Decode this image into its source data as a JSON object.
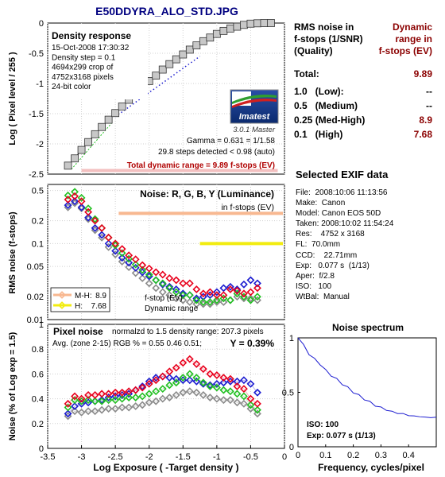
{
  "title": "E50DDYRA_ALO_STD.JPG",
  "summary": {
    "header_left": [
      "RMS noise in",
      "f-stops (1/SNR)",
      "(Quality)"
    ],
    "header_right": [
      "Dynamic",
      "range in",
      "f-stops (EV)"
    ],
    "rows": [
      {
        "label": "Total:",
        "value": "9.89"
      },
      {
        "label": "1.0   (Low):",
        "value": "--"
      },
      {
        "label": "0.5   (Medium)",
        "value": "--"
      },
      {
        "label": "0.25 (Med-High)",
        "value": "8.9"
      },
      {
        "label": "0.1   (High)",
        "value": "7.68"
      }
    ]
  },
  "exif": {
    "title": "Selected EXIF data",
    "lines": [
      "File:  2008:10:06 11:13:56",
      "Make:  Canon",
      "Model: Canon EOS 50D",
      "Taken: 2008:10:02 11:54:24",
      "Res:    4752 x 3168",
      "FL:  70.0mm",
      "CCD:    22.71mm",
      "Exp:   0.077 s  (1/13)",
      "Aper:  f/2.8",
      "ISO:   100",
      "WtBal:  Manual"
    ]
  },
  "colors": {
    "red": "#e8001c",
    "green": "#22c022",
    "blue": "#1c1cd0",
    "gray": "#8a8a8a",
    "title_blue": "#000080",
    "value_red": "#8b0000",
    "mh_band": "#f8b890",
    "h_band": "#f2ec10"
  },
  "panel1": {
    "box_title": "Density response",
    "info": [
      "15-Oct-2008 17:30:32",
      "Density step = 0.1",
      "4694x299 crop of",
      "4752x3168 pixels",
      "24-bit color"
    ],
    "logo_text": "Imatest",
    "version": "3.0.1  Master",
    "gamma": "Gamma = 0.631 = 1/1.58",
    "steps": "29.8 steps detected < 0.98 (auto)",
    "total_dr": "Total dynamic range = 9.89 f-stops (EV)",
    "ylabel": "Log ( Pixel level / 255 )",
    "yticks": [
      "0",
      "-0.5",
      "-1",
      "-1.5",
      "-2",
      "-2.5"
    ]
  },
  "panel2": {
    "title": "Noise: R, G, B, Y (Luminance)",
    "subtitle": "in f-stops (EV)",
    "ylabel": "RMS noise (f-stops)",
    "yticks": [
      "0.5",
      "0.2",
      "0.1",
      "0.05",
      "0.02",
      "0.01"
    ],
    "legend": [
      {
        "label": "M-H:",
        "value": "8.9"
      },
      {
        "label": "H:",
        "value": "7.68"
      }
    ],
    "annot": [
      "f-stop (EV)",
      "Dynamic range"
    ]
  },
  "panel3": {
    "title": "Pixel noise",
    "norm_text": "normalzd to 1.5 density range: 207.3 pixels",
    "avg_text": "Avg. (zone 2-15) RGB % = 0.55  0.46  0.51;",
    "y_text": "Y = 0.39%",
    "ylabel": "Noise (% of Log exp = 1.5)",
    "yticks": [
      "1",
      "0.8",
      "0.6",
      "0.4",
      "0.2",
      "0"
    ],
    "xticks": [
      "-3.5",
      "-3",
      "-2.5",
      "-2",
      "-1.5",
      "-1",
      "-0.5",
      "0"
    ],
    "xlabel": "Log Exposure  ( -Target density )"
  },
  "spectrum": {
    "title": "Noise spectrum",
    "yticks": [
      "1",
      "0.5",
      "0"
    ],
    "xticks": [
      "0",
      "0.1",
      "0.2",
      "0.3",
      "0.4"
    ],
    "xlabel": "Frequency, cycles/pixel",
    "iso": "ISO:   100",
    "exp": "Exp:   0.077 s  (1/13)"
  },
  "chart_data": [
    {
      "type": "scatter",
      "title": "Density response",
      "xlabel": "",
      "ylabel": "Log ( Pixel level / 255 )",
      "xlim": [
        -3.5,
        0
      ],
      "ylim": [
        -2.5,
        0
      ],
      "series": [
        {
          "name": "",
          "x": [
            -3.2,
            -3.1,
            -3.0,
            -2.9,
            -2.8,
            -2.7,
            -2.6,
            -2.5,
            -2.4,
            -2.3,
            -2.2,
            -2.1,
            -2.0,
            -1.9,
            -1.8,
            -1.7,
            -1.6,
            -1.5,
            -1.4,
            -1.3,
            -1.2,
            -1.1,
            -1.0,
            -0.9,
            -0.8,
            -0.7,
            -0.6,
            -0.5,
            -0.4,
            -0.3,
            -0.2
          ],
          "y": [
            -2.36,
            -2.24,
            -2.1,
            -1.97,
            -1.84,
            -1.72,
            -1.6,
            -1.49,
            -1.38,
            -1.27,
            -1.16,
            -1.06,
            -0.96,
            -0.87,
            -0.77,
            -0.68,
            -0.6,
            -0.52,
            -0.44,
            -0.37,
            -0.3,
            -0.24,
            -0.18,
            -0.13,
            -0.09,
            -0.06,
            -0.03,
            -0.01,
            -0.004,
            -0.001,
            0.0
          ]
        }
      ]
    },
    {
      "type": "scatter",
      "title": "Noise: R, G, B, Y (Luminance)",
      "ylabel": "RMS noise (f-stops)",
      "yscale": "log",
      "xlim": [
        -3.5,
        0
      ],
      "ylim": [
        0.01,
        0.6
      ],
      "x": [
        -3.2,
        -3.1,
        -3.0,
        -2.9,
        -2.8,
        -2.7,
        -2.6,
        -2.5,
        -2.4,
        -2.3,
        -2.2,
        -2.1,
        -2.0,
        -1.9,
        -1.8,
        -1.7,
        -1.6,
        -1.5,
        -1.4,
        -1.3,
        -1.2,
        -1.1,
        -1.0,
        -0.9,
        -0.8,
        -0.7,
        -0.6,
        -0.5,
        -0.4
      ],
      "series": [
        {
          "name": "R",
          "values": [
            0.38,
            0.42,
            0.36,
            0.26,
            0.2,
            0.16,
            0.12,
            0.1,
            0.085,
            0.07,
            0.062,
            0.052,
            0.047,
            0.042,
            0.039,
            0.035,
            0.033,
            0.03,
            0.03,
            0.025,
            0.022,
            0.023,
            0.021,
            0.021,
            0.025,
            0.024,
            0.022,
            0.023,
            0.026
          ]
        },
        {
          "name": "G",
          "values": [
            0.43,
            0.48,
            0.4,
            0.29,
            0.21,
            0.16,
            0.12,
            0.095,
            0.075,
            0.063,
            0.053,
            0.045,
            0.039,
            0.033,
            0.03,
            0.026,
            0.023,
            0.021,
            0.021,
            0.018,
            0.017,
            0.017,
            0.018,
            0.019,
            0.018,
            0.022,
            0.02,
            0.018,
            0.02
          ]
        },
        {
          "name": "B",
          "values": [
            0.32,
            0.36,
            0.3,
            0.22,
            0.16,
            0.13,
            0.1,
            0.08,
            0.065,
            0.056,
            0.048,
            0.042,
            0.037,
            0.033,
            0.029,
            0.027,
            0.025,
            0.022,
            0.021,
            0.019,
            0.02,
            0.021,
            0.023,
            0.026,
            0.027,
            0.025,
            0.029,
            0.033,
            0.03
          ]
        },
        {
          "name": "Y",
          "values": [
            0.3,
            0.34,
            0.29,
            0.21,
            0.15,
            0.12,
            0.09,
            0.072,
            0.058,
            0.049,
            0.041,
            0.035,
            0.03,
            0.026,
            0.023,
            0.021,
            0.019,
            0.018,
            0.017,
            0.016,
            0.016,
            0.016,
            0.017,
            0.017,
            0.018,
            0.02,
            0.019,
            0.019,
            0.018
          ]
        }
      ],
      "reference_lines": [
        {
          "label": "M-H:",
          "value": 0.25
        },
        {
          "label": "H:",
          "value": 0.1
        }
      ]
    },
    {
      "type": "scatter",
      "title": "Pixel noise",
      "xlabel": "Log Exposure  ( -Target density )",
      "ylabel": "Noise (% of Log exp = 1.5)",
      "xlim": [
        -3.5,
        0
      ],
      "ylim": [
        0,
        1
      ],
      "x": [
        -3.2,
        -3.1,
        -3.0,
        -2.9,
        -2.8,
        -2.7,
        -2.6,
        -2.5,
        -2.4,
        -2.3,
        -2.2,
        -2.1,
        -2.0,
        -1.9,
        -1.8,
        -1.7,
        -1.6,
        -1.5,
        -1.4,
        -1.3,
        -1.2,
        -1.1,
        -1.0,
        -0.9,
        -0.8,
        -0.7,
        -0.6,
        -0.5,
        -0.4
      ],
      "series": [
        {
          "name": "R",
          "values": [
            0.36,
            0.42,
            0.4,
            0.43,
            0.43,
            0.44,
            0.44,
            0.45,
            0.45,
            0.46,
            0.47,
            0.49,
            0.52,
            0.55,
            0.58,
            0.62,
            0.65,
            0.69,
            0.72,
            0.68,
            0.64,
            0.6,
            0.59,
            0.57,
            0.56,
            0.5,
            0.48,
            0.4,
            0.36
          ]
        },
        {
          "name": "G",
          "values": [
            0.33,
            0.39,
            0.38,
            0.39,
            0.38,
            0.38,
            0.39,
            0.39,
            0.4,
            0.41,
            0.41,
            0.42,
            0.44,
            0.46,
            0.48,
            0.51,
            0.53,
            0.57,
            0.6,
            0.57,
            0.53,
            0.5,
            0.49,
            0.47,
            0.46,
            0.44,
            0.42,
            0.35,
            0.31
          ]
        },
        {
          "name": "B",
          "values": [
            0.28,
            0.34,
            0.36,
            0.37,
            0.38,
            0.39,
            0.41,
            0.42,
            0.43,
            0.44,
            0.47,
            0.5,
            0.54,
            0.57,
            0.58,
            0.57,
            0.56,
            0.55,
            0.55,
            0.54,
            0.52,
            0.51,
            0.52,
            0.53,
            0.54,
            0.54,
            0.55,
            0.52,
            0.45
          ]
        },
        {
          "name": "Y",
          "values": [
            0.26,
            0.3,
            0.29,
            0.3,
            0.3,
            0.31,
            0.32,
            0.32,
            0.33,
            0.33,
            0.34,
            0.35,
            0.37,
            0.38,
            0.4,
            0.41,
            0.43,
            0.45,
            0.46,
            0.45,
            0.43,
            0.41,
            0.4,
            0.39,
            0.39,
            0.37,
            0.36,
            0.32,
            0.28
          ]
        }
      ]
    },
    {
      "type": "line",
      "title": "Noise spectrum",
      "xlabel": "Frequency, cycles/pixel",
      "xlim": [
        0,
        0.5
      ],
      "ylim": [
        0,
        1
      ],
      "series": [
        {
          "name": "",
          "x": [
            0,
            0.02,
            0.04,
            0.06,
            0.08,
            0.1,
            0.12,
            0.14,
            0.16,
            0.18,
            0.2,
            0.22,
            0.24,
            0.26,
            0.28,
            0.3,
            0.32,
            0.34,
            0.36,
            0.38,
            0.4,
            0.42,
            0.44,
            0.46,
            0.48,
            0.5
          ],
          "y": [
            1.0,
            0.93,
            0.86,
            0.8,
            0.76,
            0.7,
            0.66,
            0.62,
            0.58,
            0.54,
            0.5,
            0.47,
            0.44,
            0.41,
            0.38,
            0.36,
            0.34,
            0.32,
            0.31,
            0.3,
            0.29,
            0.28,
            0.28,
            0.27,
            0.27,
            0.27
          ]
        }
      ]
    }
  ]
}
